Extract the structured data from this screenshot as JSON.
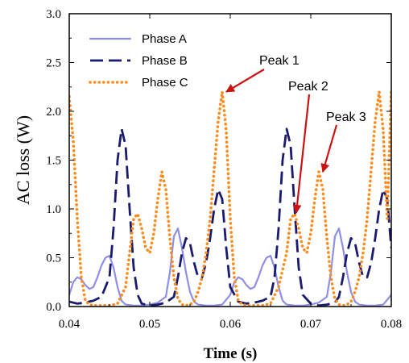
{
  "chart_data": {
    "type": "line",
    "title": "",
    "xlabel": "Time (s)",
    "ylabel": "AC loss (W)",
    "xlim": [
      0.04,
      0.08
    ],
    "ylim": [
      0.0,
      3.0
    ],
    "xticks": [
      "0.04",
      "0.05",
      "0.06",
      "0.07",
      "0.08"
    ],
    "yticks": [
      "0.0",
      "0.5",
      "1.0",
      "1.5",
      "2.0",
      "2.5",
      "3.0"
    ],
    "grid": false,
    "legend": "top-left",
    "colors": {
      "phase_a": "#8f8fe8",
      "phase_b": "#1a1a6e",
      "phase_c": "#ff8c1a",
      "arrow": "#cc1111"
    },
    "series": [
      {
        "name": "Phase A",
        "style": "solid",
        "x": [
          0.04,
          0.0405,
          0.041,
          0.0415,
          0.042,
          0.0425,
          0.043,
          0.0435,
          0.044,
          0.0445,
          0.045,
          0.0455,
          0.046,
          0.0465,
          0.047,
          0.048,
          0.049,
          0.05,
          0.051,
          0.052,
          0.0525,
          0.053,
          0.0535,
          0.054,
          0.0545,
          0.055,
          0.0555,
          0.056,
          0.057,
          0.058,
          0.059,
          0.06,
          0.0605,
          0.061,
          0.0615,
          0.062,
          0.0625,
          0.063,
          0.0635,
          0.064,
          0.0645,
          0.065,
          0.0655,
          0.066,
          0.0665,
          0.067,
          0.068,
          0.069,
          0.07,
          0.071,
          0.072,
          0.0725,
          0.073,
          0.0735,
          0.074,
          0.0745,
          0.075,
          0.0755,
          0.076,
          0.077,
          0.078,
          0.079,
          0.08
        ],
        "y": [
          0.12,
          0.25,
          0.3,
          0.28,
          0.22,
          0.18,
          0.2,
          0.3,
          0.42,
          0.5,
          0.52,
          0.4,
          0.2,
          0.06,
          0.02,
          0.01,
          0.01,
          0.02,
          0.04,
          0.1,
          0.35,
          0.72,
          0.8,
          0.6,
          0.35,
          0.15,
          0.05,
          0.02,
          0.01,
          0.01,
          0.02,
          0.12,
          0.25,
          0.3,
          0.28,
          0.22,
          0.18,
          0.2,
          0.3,
          0.42,
          0.5,
          0.52,
          0.4,
          0.2,
          0.06,
          0.02,
          0.01,
          0.01,
          0.02,
          0.04,
          0.1,
          0.35,
          0.72,
          0.8,
          0.6,
          0.35,
          0.15,
          0.05,
          0.02,
          0.01,
          0.01,
          0.02,
          0.12
        ]
      },
      {
        "name": "Phase B",
        "style": "dash",
        "x": [
          0.04,
          0.041,
          0.042,
          0.043,
          0.044,
          0.045,
          0.0455,
          0.046,
          0.0465,
          0.047,
          0.0475,
          0.048,
          0.0485,
          0.049,
          0.05,
          0.051,
          0.052,
          0.053,
          0.0535,
          0.054,
          0.0545,
          0.055,
          0.0555,
          0.056,
          0.0565,
          0.057,
          0.0575,
          0.058,
          0.0585,
          0.059,
          0.0595,
          0.06,
          0.061,
          0.062,
          0.063,
          0.064,
          0.065,
          0.0655,
          0.066,
          0.0665,
          0.067,
          0.0675,
          0.068,
          0.0685,
          0.069,
          0.07,
          0.071,
          0.072,
          0.073,
          0.0735,
          0.074,
          0.0745,
          0.075,
          0.0755,
          0.076,
          0.0765,
          0.077,
          0.0775,
          0.078,
          0.0785,
          0.079,
          0.0795,
          0.08
        ],
        "y": [
          0.05,
          0.03,
          0.04,
          0.06,
          0.1,
          0.3,
          0.8,
          1.5,
          1.82,
          1.65,
          1.0,
          0.4,
          0.12,
          0.03,
          0.01,
          0.02,
          0.04,
          0.1,
          0.3,
          0.55,
          0.7,
          0.65,
          0.45,
          0.3,
          0.3,
          0.45,
          0.7,
          1.0,
          1.2,
          1.1,
          0.6,
          0.2,
          0.05,
          0.03,
          0.04,
          0.06,
          0.1,
          0.3,
          0.8,
          1.5,
          1.82,
          1.65,
          1.0,
          0.4,
          0.12,
          0.03,
          0.01,
          0.02,
          0.04,
          0.1,
          0.3,
          0.55,
          0.7,
          0.65,
          0.45,
          0.3,
          0.3,
          0.45,
          0.7,
          1.0,
          1.2,
          1.1,
          0.6
        ]
      },
      {
        "name": "Phase C",
        "style": "dot",
        "x": [
          0.04,
          0.0405,
          0.041,
          0.0415,
          0.042,
          0.0425,
          0.043,
          0.044,
          0.045,
          0.046,
          0.047,
          0.0475,
          0.048,
          0.0485,
          0.049,
          0.0495,
          0.05,
          0.0505,
          0.051,
          0.0515,
          0.052,
          0.0525,
          0.053,
          0.0535,
          0.054,
          0.0545,
          0.055,
          0.0555,
          0.056,
          0.0565,
          0.057,
          0.0575,
          0.058,
          0.0585,
          0.059,
          0.0595,
          0.06,
          0.0605,
          0.061,
          0.0615,
          0.062,
          0.063,
          0.064,
          0.065,
          0.066,
          0.067,
          0.0675,
          0.068,
          0.0685,
          0.069,
          0.0695,
          0.07,
          0.0705,
          0.071,
          0.0715,
          0.072,
          0.0725,
          0.073,
          0.0735,
          0.074,
          0.0745,
          0.075,
          0.0755,
          0.076,
          0.0765,
          0.077,
          0.0775,
          0.078,
          0.0785,
          0.079,
          0.0795,
          0.08
        ],
        "y": [
          2.15,
          1.7,
          0.9,
          0.3,
          0.06,
          0.02,
          0.01,
          0.01,
          0.01,
          0.03,
          0.2,
          0.55,
          0.9,
          0.95,
          0.8,
          0.6,
          0.55,
          0.75,
          1.1,
          1.38,
          1.2,
          0.7,
          0.3,
          0.08,
          0.02,
          0.01,
          0.02,
          0.05,
          0.15,
          0.3,
          0.55,
          0.9,
          1.4,
          1.9,
          2.2,
          1.8,
          0.9,
          0.3,
          0.06,
          0.02,
          0.01,
          0.01,
          0.01,
          0.03,
          0.2,
          0.55,
          0.9,
          0.95,
          0.8,
          0.6,
          0.55,
          0.75,
          1.1,
          1.38,
          1.2,
          0.7,
          0.3,
          0.08,
          0.02,
          0.01,
          0.02,
          0.05,
          0.15,
          0.3,
          0.55,
          0.9,
          1.4,
          1.9,
          2.2,
          1.8,
          0.9,
          2.22
        ]
      }
    ],
    "annotations": [
      {
        "label": "Peak 1",
        "target_x": 0.0595,
        "target_y": 2.2
      },
      {
        "label": "Peak 2",
        "target_x": 0.0682,
        "target_y": 0.96
      },
      {
        "label": "Peak 3",
        "target_x": 0.0715,
        "target_y": 1.38
      }
    ]
  }
}
